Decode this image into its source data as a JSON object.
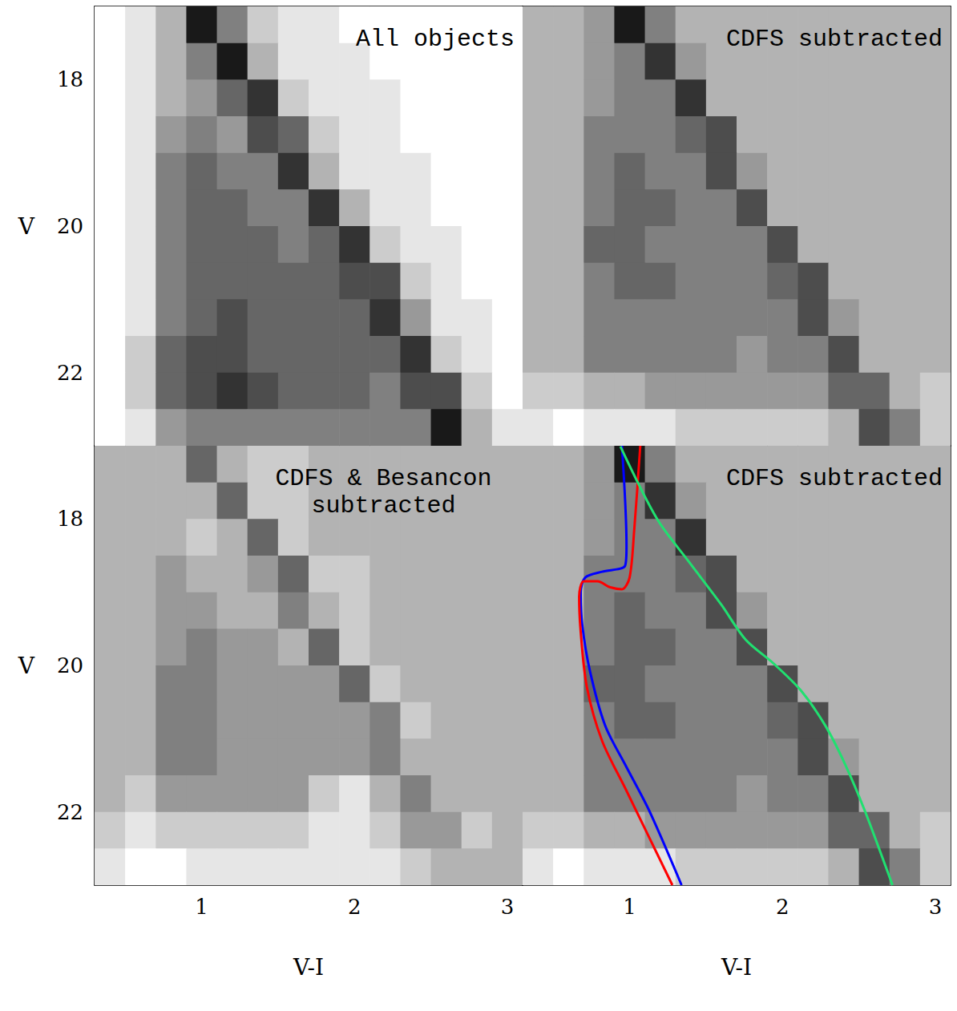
{
  "chart_data": [
    {
      "type": "heatmap",
      "title": "All objects",
      "ylabel": "V",
      "tick_labels": "y",
      "xlim": [
        0.3,
        3.1
      ],
      "ylim": [
        17,
        23
      ],
      "xticks": [
        1,
        2,
        3
      ],
      "yticks": [
        18,
        20,
        22
      ],
      "color_range": [
        0,
        10
      ],
      "x_bins": [
        0.3,
        0.5,
        0.7,
        0.9,
        1.1,
        1.3,
        1.5,
        1.7,
        1.9,
        2.1,
        2.3,
        2.5,
        2.7,
        2.9,
        3.1
      ],
      "y_bins": [
        17,
        17.5,
        18,
        18.5,
        19,
        19.5,
        20,
        20.5,
        21,
        21.5,
        22,
        22.5,
        23
      ],
      "cells": [
        [
          0,
          1,
          3,
          9,
          5,
          2,
          1,
          1,
          0,
          0,
          0,
          0,
          0,
          0
        ],
        [
          0,
          1,
          3,
          5,
          9,
          3,
          1,
          1,
          1,
          0,
          0,
          0,
          0,
          0
        ],
        [
          0,
          1,
          3,
          4,
          6,
          8,
          2,
          1,
          1,
          1,
          0,
          0,
          0,
          0
        ],
        [
          0,
          1,
          4,
          5,
          4,
          7,
          6,
          2,
          1,
          1,
          0,
          0,
          0,
          0
        ],
        [
          0,
          1,
          5,
          6,
          5,
          5,
          8,
          3,
          1,
          1,
          1,
          0,
          0,
          0
        ],
        [
          0,
          1,
          5,
          6,
          6,
          5,
          5,
          8,
          3,
          1,
          1,
          0,
          0,
          0
        ],
        [
          0,
          1,
          5,
          6,
          6,
          6,
          5,
          6,
          8,
          2,
          1,
          1,
          0,
          0
        ],
        [
          0,
          1,
          5,
          6,
          6,
          6,
          6,
          6,
          7,
          7,
          2,
          1,
          0,
          0
        ],
        [
          0,
          1,
          5,
          6,
          7,
          6,
          6,
          6,
          6,
          8,
          4,
          1,
          1,
          0
        ],
        [
          0,
          2,
          6,
          7,
          7,
          6,
          6,
          6,
          6,
          6,
          8,
          2,
          1,
          0
        ],
        [
          0,
          2,
          6,
          7,
          8,
          7,
          6,
          6,
          6,
          5,
          7,
          7,
          2,
          0
        ],
        [
          0,
          1,
          4,
          5,
          5,
          5,
          5,
          5,
          5,
          5,
          5,
          9,
          3,
          1
        ]
      ]
    },
    {
      "type": "heatmap",
      "title": "CDFS subtracted",
      "tick_labels": false,
      "xlim": [
        0.3,
        3.1
      ],
      "ylim": [
        17,
        23
      ],
      "xticks": [
        1,
        2,
        3
      ],
      "yticks": [
        18,
        20,
        22
      ],
      "color_range": [
        0,
        10
      ],
      "x_bins": [
        0.3,
        0.5,
        0.7,
        0.9,
        1.1,
        1.3,
        1.5,
        1.7,
        1.9,
        2.1,
        2.3,
        2.5,
        2.7,
        2.9,
        3.1
      ],
      "y_bins": [
        17,
        17.5,
        18,
        18.5,
        19,
        19.5,
        20,
        20.5,
        21,
        21.5,
        22,
        22.5,
        23
      ],
      "cells": [
        [
          3,
          3,
          4,
          9,
          5,
          3,
          3,
          3,
          3,
          3,
          3,
          3,
          3,
          3
        ],
        [
          3,
          3,
          4,
          5,
          8,
          4,
          3,
          3,
          3,
          3,
          3,
          3,
          3,
          3
        ],
        [
          3,
          3,
          4,
          5,
          5,
          8,
          3,
          3,
          3,
          3,
          3,
          3,
          3,
          3
        ],
        [
          3,
          3,
          5,
          5,
          5,
          6,
          7,
          3,
          3,
          3,
          3,
          3,
          3,
          3
        ],
        [
          3,
          3,
          5,
          6,
          5,
          5,
          7,
          4,
          3,
          3,
          3,
          3,
          3,
          3
        ],
        [
          3,
          3,
          5,
          6,
          6,
          5,
          5,
          7,
          3,
          3,
          3,
          3,
          3,
          3
        ],
        [
          3,
          3,
          6,
          6,
          5,
          5,
          5,
          5,
          7,
          3,
          3,
          3,
          3,
          3
        ],
        [
          3,
          3,
          5,
          6,
          6,
          5,
          5,
          5,
          6,
          7,
          3,
          3,
          3,
          3
        ],
        [
          3,
          3,
          5,
          5,
          5,
          5,
          5,
          5,
          5,
          7,
          4,
          3,
          3,
          3
        ],
        [
          3,
          3,
          5,
          5,
          5,
          5,
          5,
          4,
          5,
          5,
          7,
          3,
          3,
          3
        ],
        [
          2,
          2,
          3,
          3,
          4,
          4,
          4,
          4,
          4,
          4,
          6,
          6,
          3,
          2
        ],
        [
          1,
          0,
          1,
          1,
          1,
          2,
          2,
          2,
          2,
          2,
          3,
          7,
          5,
          2
        ]
      ]
    },
    {
      "type": "heatmap",
      "title": "CDFS & Besancon subtracted",
      "xlabel": "V-I",
      "ylabel": "V",
      "tick_labels": true,
      "xlim": [
        0.3,
        3.1
      ],
      "ylim": [
        17,
        23
      ],
      "xticks": [
        1,
        2,
        3
      ],
      "yticks": [
        18,
        20,
        22
      ],
      "color_range": [
        0,
        10
      ],
      "x_bins": [
        0.3,
        0.5,
        0.7,
        0.9,
        1.1,
        1.3,
        1.5,
        1.7,
        1.9,
        2.1,
        2.3,
        2.5,
        2.7,
        2.9,
        3.1
      ],
      "y_bins": [
        17,
        17.5,
        18,
        18.5,
        19,
        19.5,
        20,
        20.5,
        21,
        21.5,
        22,
        22.5,
        23
      ],
      "cells": [
        [
          3,
          3,
          3,
          6,
          3,
          2,
          2,
          3,
          3,
          3,
          3,
          3,
          3,
          3
        ],
        [
          3,
          3,
          3,
          3,
          6,
          2,
          2,
          3,
          3,
          3,
          3,
          3,
          3,
          3
        ],
        [
          3,
          3,
          3,
          2,
          3,
          6,
          2,
          3,
          3,
          3,
          3,
          3,
          3,
          3
        ],
        [
          3,
          3,
          4,
          3,
          3,
          4,
          6,
          2,
          2,
          3,
          3,
          3,
          3,
          3
        ],
        [
          3,
          3,
          4,
          4,
          3,
          3,
          5,
          3,
          2,
          3,
          3,
          3,
          3,
          3
        ],
        [
          3,
          3,
          4,
          5,
          4,
          4,
          3,
          6,
          2,
          3,
          3,
          3,
          3,
          3
        ],
        [
          3,
          3,
          5,
          5,
          4,
          4,
          4,
          4,
          6,
          2,
          3,
          3,
          3,
          3
        ],
        [
          3,
          3,
          5,
          5,
          4,
          4,
          4,
          4,
          4,
          5,
          2,
          3,
          3,
          3
        ],
        [
          3,
          3,
          5,
          5,
          4,
          4,
          4,
          4,
          4,
          5,
          3,
          3,
          3,
          3
        ],
        [
          3,
          2,
          4,
          4,
          4,
          4,
          4,
          2,
          1,
          3,
          5,
          3,
          3,
          3
        ],
        [
          2,
          1,
          2,
          2,
          2,
          2,
          2,
          1,
          1,
          2,
          4,
          4,
          2,
          3
        ],
        [
          1,
          0,
          0,
          1,
          1,
          1,
          1,
          1,
          1,
          1,
          2,
          3,
          3,
          3
        ]
      ]
    },
    {
      "type": "heatmap",
      "title": "CDFS subtracted",
      "xlabel": "V-I",
      "tick_labels": "x",
      "xlim": [
        0.3,
        3.1
      ],
      "ylim": [
        17,
        23
      ],
      "xticks": [
        1,
        2,
        3
      ],
      "yticks": [
        18,
        20,
        22
      ],
      "color_range": [
        0,
        10
      ],
      "x_bins": [
        0.3,
        0.5,
        0.7,
        0.9,
        1.1,
        1.3,
        1.5,
        1.7,
        1.9,
        2.1,
        2.3,
        2.5,
        2.7,
        2.9,
        3.1
      ],
      "y_bins": [
        17,
        17.5,
        18,
        18.5,
        19,
        19.5,
        20,
        20.5,
        21,
        21.5,
        22,
        22.5,
        23
      ],
      "cells": [
        [
          3,
          3,
          4,
          9,
          5,
          3,
          3,
          3,
          3,
          3,
          3,
          3,
          3,
          3
        ],
        [
          3,
          3,
          4,
          5,
          8,
          4,
          3,
          3,
          3,
          3,
          3,
          3,
          3,
          3
        ],
        [
          3,
          3,
          4,
          5,
          5,
          8,
          3,
          3,
          3,
          3,
          3,
          3,
          3,
          3
        ],
        [
          3,
          3,
          5,
          5,
          5,
          6,
          7,
          3,
          3,
          3,
          3,
          3,
          3,
          3
        ],
        [
          3,
          3,
          5,
          6,
          5,
          5,
          7,
          4,
          3,
          3,
          3,
          3,
          3,
          3
        ],
        [
          3,
          3,
          5,
          6,
          6,
          5,
          5,
          7,
          3,
          3,
          3,
          3,
          3,
          3
        ],
        [
          3,
          3,
          6,
          6,
          5,
          5,
          5,
          5,
          7,
          3,
          3,
          3,
          3,
          3
        ],
        [
          3,
          3,
          5,
          6,
          6,
          5,
          5,
          5,
          6,
          7,
          3,
          3,
          3,
          3
        ],
        [
          3,
          3,
          5,
          5,
          5,
          5,
          5,
          5,
          5,
          7,
          4,
          3,
          3,
          3
        ],
        [
          3,
          3,
          5,
          5,
          5,
          5,
          5,
          4,
          5,
          5,
          7,
          3,
          3,
          3
        ],
        [
          2,
          2,
          3,
          3,
          4,
          4,
          4,
          4,
          4,
          4,
          6,
          6,
          3,
          2
        ],
        [
          1,
          0,
          1,
          1,
          1,
          2,
          2,
          2,
          2,
          2,
          3,
          7,
          5,
          2
        ]
      ],
      "series": [
        {
          "type": "line",
          "color": "#0000ff",
          "x": [
            0.95,
            0.98,
            0.97,
            0.82,
            0.71,
            0.68,
            0.69,
            0.74,
            0.84,
            0.97,
            1.13,
            1.34
          ],
          "values": [
            17.0,
            18.37,
            18.64,
            18.72,
            18.8,
            19.01,
            19.44,
            20.07,
            20.82,
            21.35,
            21.99,
            23.0
          ]
        },
        {
          "type": "line",
          "color": "#ff0000",
          "x": [
            1.07,
            1.03,
            1.0,
            0.95,
            0.87,
            0.79,
            0.7,
            0.67,
            0.68,
            0.72,
            0.82,
            0.97,
            1.28
          ],
          "values": [
            17.0,
            18.16,
            18.8,
            18.96,
            18.93,
            18.85,
            18.85,
            19.06,
            19.54,
            20.29,
            21.03,
            21.67,
            23.0
          ]
        },
        {
          "type": "line",
          "color": "#20e070",
          "x": [
            0.94,
            1.18,
            1.39,
            1.6,
            1.76,
            1.94,
            2.12,
            2.28,
            2.41,
            2.54,
            2.72
          ],
          "values": [
            17.01,
            18.0,
            18.59,
            19.17,
            19.65,
            19.97,
            20.34,
            20.82,
            21.35,
            21.99,
            23.0
          ]
        }
      ]
    }
  ]
}
